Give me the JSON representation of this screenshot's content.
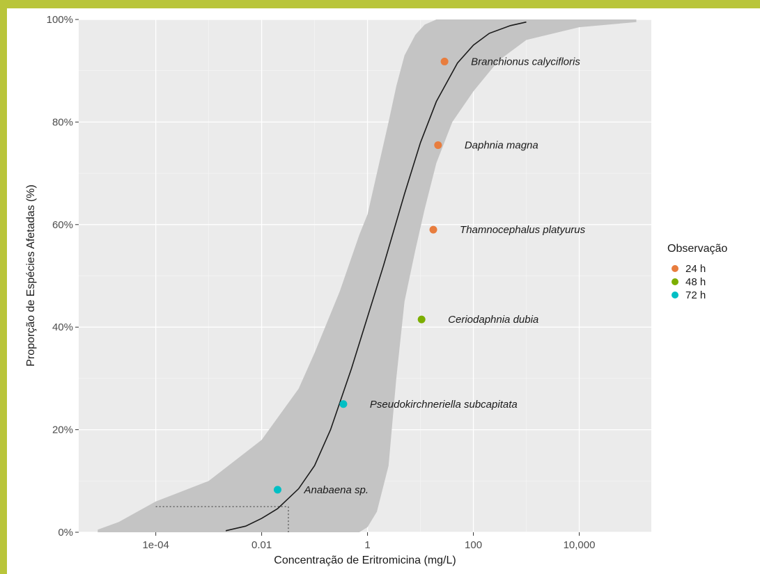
{
  "chart_data": {
    "type": "scatter",
    "title": "",
    "xlabel": "Concentração de Eritromicina (mg/L)",
    "ylabel": "Proporção de Espécies Afetadas (%)",
    "x_scale": "log10",
    "xlim": [
      3.5e-06,
      230000
    ],
    "ylim": [
      0,
      1
    ],
    "x_ticks": [
      0.0001,
      0.01,
      1,
      100,
      10000
    ],
    "x_tick_labels": [
      "1e-04",
      "0.01",
      "1",
      "100",
      "10,000"
    ],
    "y_ticks": [
      0,
      0.2,
      0.4,
      0.6,
      0.8,
      1
    ],
    "y_tick_labels": [
      "0%",
      "20%",
      "40%",
      "60%",
      "80%",
      "100%"
    ],
    "grid": true,
    "legend": {
      "title": "Observação",
      "position": "right",
      "entries": [
        {
          "label": "24 h",
          "color": "#e87d3e"
        },
        {
          "label": "48 h",
          "color": "#7cae00"
        },
        {
          "label": "72 h",
          "color": "#00bfc4"
        }
      ]
    },
    "points": [
      {
        "species": "Anabaena sp.",
        "x": 0.02,
        "y": 0.083,
        "group": "72 h"
      },
      {
        "species": "Pseudokirchneriella subcapitata",
        "x": 0.35,
        "y": 0.25,
        "group": "72 h"
      },
      {
        "species": "Ceriodaphnia dubia",
        "x": 10.5,
        "y": 0.415,
        "group": "48 h"
      },
      {
        "species": "Thamnocephalus platyurus",
        "x": 17.5,
        "y": 0.59,
        "group": "24 h"
      },
      {
        "species": "Daphnia magna",
        "x": 21.5,
        "y": 0.755,
        "group": "24 h"
      },
      {
        "species": "Branchionus calycifloris",
        "x": 28.5,
        "y": 0.918,
        "group": "24 h"
      }
    ],
    "fitted_curve": {
      "x": [
        0.0021,
        0.005,
        0.01,
        0.02,
        0.05,
        0.1,
        0.2,
        0.5,
        1,
        2,
        5,
        10,
        20,
        50,
        100,
        200,
        500,
        1000
      ],
      "y": [
        0.003,
        0.012,
        0.027,
        0.046,
        0.085,
        0.13,
        0.2,
        0.32,
        0.42,
        0.52,
        0.66,
        0.76,
        0.84,
        0.915,
        0.95,
        0.973,
        0.988,
        0.995
      ]
    },
    "confidence_band": {
      "x": [
        8e-06,
        2e-05,
        0.0001,
        0.001,
        0.01,
        0.05,
        0.1,
        0.3,
        0.7,
        1,
        1.5,
        2.5,
        3.5,
        5,
        8,
        12,
        20,
        40,
        100,
        300,
        1000,
        10000,
        120000
      ],
      "lower": [
        0,
        0,
        0,
        0,
        0,
        0,
        0,
        0,
        0,
        0.01,
        0.04,
        0.13,
        0.3,
        0.45,
        0.55,
        0.63,
        0.72,
        0.8,
        0.86,
        0.92,
        0.96,
        0.985,
        0.995
      ],
      "upper": [
        0.005,
        0.02,
        0.06,
        0.1,
        0.18,
        0.28,
        0.35,
        0.47,
        0.58,
        0.62,
        0.7,
        0.8,
        0.87,
        0.93,
        0.97,
        0.99,
        1,
        1,
        1,
        1,
        1,
        1,
        1
      ]
    },
    "reference_line": {
      "x": 0.032,
      "y": 0.05
    }
  }
}
